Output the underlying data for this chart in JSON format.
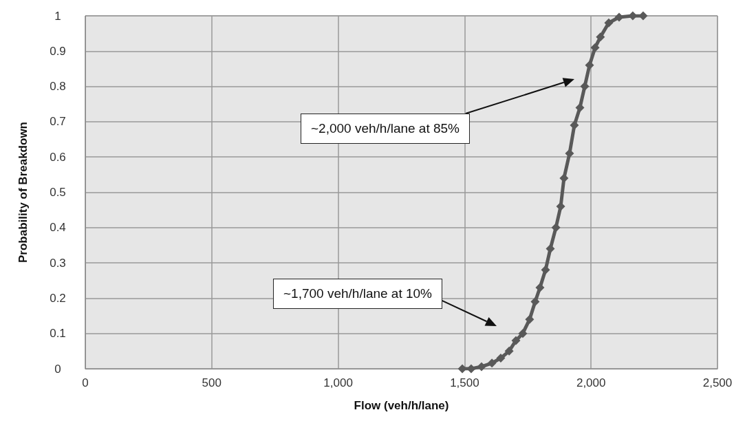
{
  "chart_data": {
    "type": "line",
    "xlabel": "Flow (veh/h/lane)",
    "ylabel": "Probability of Breakdown",
    "x": [
      1491,
      1526,
      1567,
      1608,
      1643,
      1676,
      1703,
      1730,
      1757,
      1779,
      1798,
      1820,
      1839,
      1861,
      1880,
      1893,
      1915,
      1934,
      1956,
      1975,
      1994,
      2016,
      2037,
      2070,
      2111,
      2165,
      2206
    ],
    "series": [
      {
        "color": "#595959",
        "values": [
          0,
          0,
          0.006,
          0.016,
          0.03,
          0.05,
          0.08,
          0.1,
          0.14,
          0.19,
          0.23,
          0.28,
          0.34,
          0.4,
          0.46,
          0.54,
          0.61,
          0.69,
          0.74,
          0.8,
          0.86,
          0.91,
          0.94,
          0.98,
          0.996,
          1,
          1
        ]
      }
    ],
    "xlim": [
      0,
      2500
    ],
    "xticks": [
      0,
      500,
      {
        "value": 1000,
        "label": "1,000"
      },
      {
        "value": 1500,
        "label": "1,500"
      },
      {
        "value": 2000,
        "label": "2,000"
      },
      {
        "value": 2500,
        "label": "2,500"
      }
    ],
    "ylim": [
      0,
      1
    ],
    "yticks": [
      0,
      0.1,
      0.2,
      0.3,
      0.4,
      0.5,
      0.6,
      0.7,
      0.8,
      0.9,
      1
    ],
    "grid": true,
    "marker": "diamond",
    "line_style": "solid",
    "annotations": [
      "~2,000 veh/h/lane at 85%",
      "~1,700 veh/h/lane at 10%"
    ]
  }
}
